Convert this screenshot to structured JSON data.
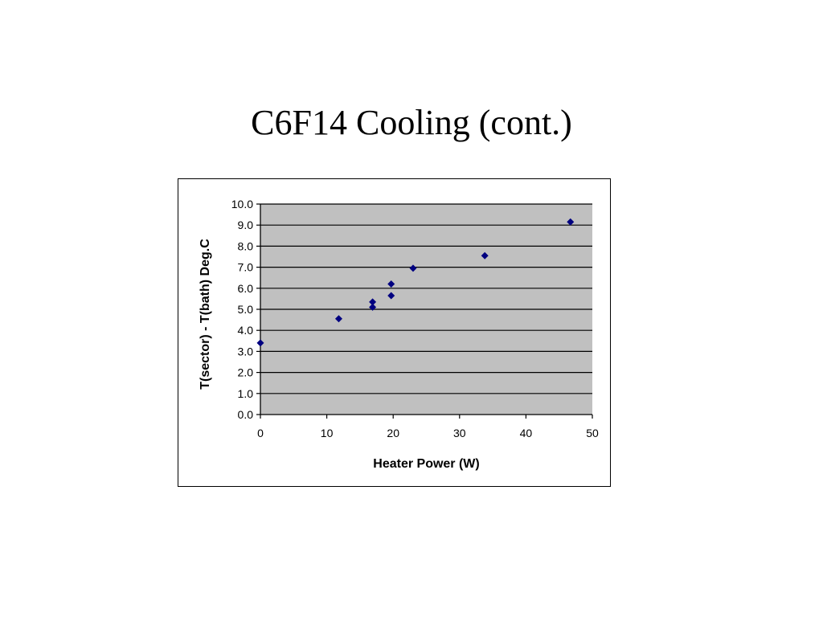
{
  "slide": {
    "title": "C6F14 Cooling (cont.)"
  },
  "colors": {
    "plot_background": "#c0c0c0",
    "gridline": "#000000",
    "marker": "#000080"
  },
  "chart_data": {
    "type": "scatter",
    "title": "",
    "xlabel": "Heater Power (W)",
    "ylabel": "T(sector) - T(bath) Deg.C",
    "xlim": [
      0,
      50
    ],
    "ylim": [
      0,
      10
    ],
    "x_ticks": [
      0,
      10,
      20,
      30,
      40,
      50
    ],
    "x_tick_labels": [
      "0",
      "10",
      "20",
      "30",
      "40",
      "50"
    ],
    "y_ticks": [
      0,
      1,
      2,
      3,
      4,
      5,
      6,
      7,
      8,
      9,
      10
    ],
    "y_tick_labels": [
      "0.0",
      "1.0",
      "2.0",
      "3.0",
      "4.0",
      "5.0",
      "6.0",
      "7.0",
      "8.0",
      "9.0",
      "10.0"
    ],
    "grid": "horizontal major",
    "legend": "none",
    "marker": "diamond",
    "series": [
      {
        "x": [
          0.0,
          11.8,
          16.9,
          16.9,
          19.7,
          19.7,
          23.0,
          33.8,
          46.7
        ],
        "y": [
          3.4,
          4.55,
          5.1,
          5.35,
          5.65,
          6.2,
          6.95,
          7.55,
          9.15
        ]
      }
    ]
  }
}
